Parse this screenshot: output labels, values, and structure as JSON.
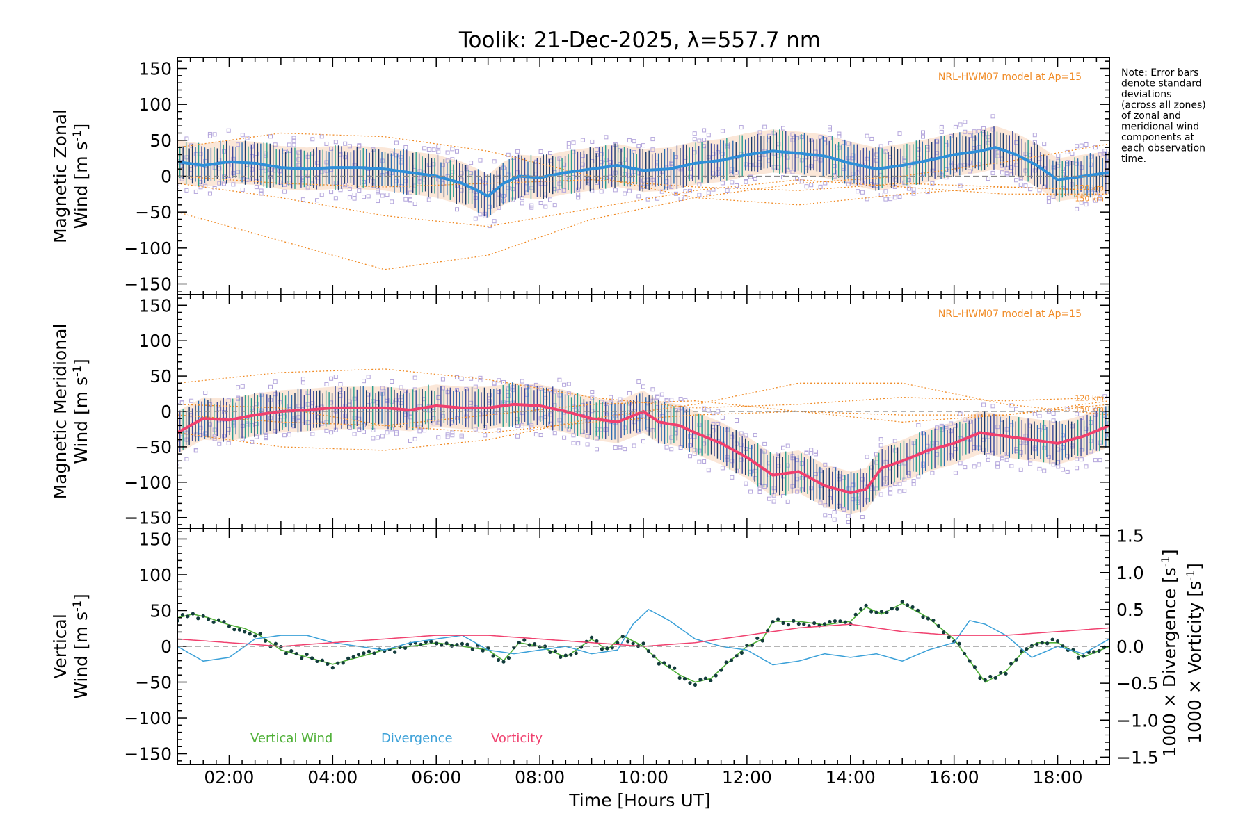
{
  "chart_data": {
    "type": "line",
    "title": "Toolik: 21-Dec-2025, λ=557.7 nm",
    "xlabel": "Time [Hours UT]",
    "xlim": [
      1.0,
      19.0
    ],
    "xticks": [
      {
        "v": 2,
        "label": "02:00"
      },
      {
        "v": 4,
        "label": "04:00"
      },
      {
        "v": 6,
        "label": "06:00"
      },
      {
        "v": 8,
        "label": "08:00"
      },
      {
        "v": 10,
        "label": "10:00"
      },
      {
        "v": 12,
        "label": "12:00"
      },
      {
        "v": 14,
        "label": "14:00"
      },
      {
        "v": 16,
        "label": "16:00"
      },
      {
        "v": 18,
        "label": "18:00"
      }
    ],
    "yticks": [
      "150",
      "100",
      "50",
      "0",
      "−50",
      "−100",
      "−150"
    ],
    "ylim": [
      -165,
      165
    ],
    "note": [
      "Note: Error bars",
      "denote standard",
      "deviations",
      "(across all zones)",
      "of zonal and",
      "meridional wind",
      "components at",
      "each observation",
      "time."
    ],
    "panels": [
      {
        "name": "zonal",
        "ylabel_line1": "Magnetic Zonal",
        "ylabel_line2": "Wind [m s",
        "ylabel_sup": "-1",
        "ylabel_close": "]",
        "model_label": "NRL-HWM07 model at Ap=15",
        "km_labels": [
          "120 km",
          "150 km"
        ],
        "mean_color": "#2f8fd8",
        "series": {
          "name": "Magnetic Zonal Wind mean",
          "x": [
            1.0,
            1.5,
            2.0,
            2.5,
            3.0,
            3.5,
            4.0,
            4.5,
            5.0,
            5.5,
            6.0,
            6.5,
            6.8,
            7.0,
            7.3,
            7.6,
            8.0,
            8.5,
            9.0,
            9.5,
            10.0,
            10.5,
            11.0,
            11.5,
            12.0,
            12.5,
            13.0,
            13.5,
            14.0,
            14.5,
            15.0,
            15.5,
            16.0,
            16.5,
            16.8,
            17.2,
            17.6,
            18.0,
            18.5,
            19.0
          ],
          "y": [
            20,
            15,
            20,
            18,
            12,
            10,
            12,
            12,
            10,
            5,
            0,
            -10,
            -20,
            -28,
            -10,
            0,
            -2,
            5,
            10,
            15,
            8,
            10,
            18,
            22,
            30,
            35,
            32,
            28,
            18,
            10,
            15,
            22,
            30,
            35,
            40,
            30,
            15,
            -5,
            0,
            5
          ]
        },
        "std": 30,
        "model_curves": [
          {
            "x": [
              1,
              3,
              5,
              7,
              9,
              11,
              13,
              15,
              17,
              19
            ],
            "y": [
              -50,
              -90,
              -130,
              -110,
              -60,
              -30,
              -10,
              0,
              20,
              45
            ]
          },
          {
            "x": [
              1,
              3,
              5,
              7,
              9,
              11,
              13,
              15,
              17,
              19
            ],
            "y": [
              -10,
              -30,
              -55,
              -70,
              -45,
              -20,
              -5,
              -15,
              -25,
              -25
            ]
          },
          {
            "x": [
              1,
              3,
              5,
              7,
              9,
              11,
              13,
              15,
              17,
              19
            ],
            "y": [
              40,
              60,
              55,
              35,
              0,
              -30,
              -40,
              -25,
              -15,
              -20
            ]
          },
          {
            "x": [
              1,
              3,
              5,
              7,
              9,
              11,
              13,
              15,
              17,
              19
            ],
            "y": [
              0,
              -10,
              -15,
              -10,
              -5,
              -15,
              -20,
              -10,
              -15,
              -20
            ]
          }
        ]
      },
      {
        "name": "meridional",
        "ylabel_line1": "Magnetic Meridional",
        "ylabel_line2": "Wind [m s",
        "ylabel_sup": "-1",
        "ylabel_close": "]",
        "model_label": "NRL-HWM07 model at Ap=15",
        "km_labels": [
          "120 km",
          "150 km"
        ],
        "mean_color": "#f0406e",
        "series": {
          "name": "Magnetic Meridional Wind mean",
          "x": [
            1.0,
            1.5,
            2.0,
            2.5,
            3.0,
            3.5,
            4.0,
            4.5,
            5.0,
            5.5,
            6.0,
            6.5,
            7.0,
            7.5,
            8.0,
            8.5,
            9.0,
            9.5,
            10.0,
            10.3,
            10.7,
            11.0,
            11.5,
            12.0,
            12.5,
            13.0,
            13.5,
            14.0,
            14.3,
            14.6,
            15.0,
            15.5,
            16.0,
            16.5,
            17.0,
            17.5,
            18.0,
            18.5,
            19.0
          ],
          "y": [
            -30,
            -10,
            -12,
            -5,
            0,
            2,
            5,
            5,
            5,
            2,
            8,
            5,
            5,
            10,
            8,
            0,
            -10,
            -15,
            0,
            -15,
            -20,
            -30,
            -45,
            -65,
            -90,
            -85,
            -105,
            -115,
            -110,
            -80,
            -70,
            -55,
            -45,
            -30,
            -35,
            -40,
            -45,
            -35,
            -20
          ]
        },
        "std": 30,
        "model_curves": [
          {
            "x": [
              1,
              3,
              5,
              7,
              9,
              11,
              13,
              15,
              17,
              19
            ],
            "y": [
              40,
              55,
              60,
              45,
              20,
              5,
              10,
              20,
              15,
              20
            ]
          },
          {
            "x": [
              1,
              3,
              5,
              7,
              9,
              11,
              13,
              15,
              17,
              19
            ],
            "y": [
              -30,
              -50,
              -55,
              -40,
              -10,
              10,
              40,
              40,
              10,
              -5
            ]
          },
          {
            "x": [
              1,
              3,
              5,
              7,
              9,
              11,
              13,
              15,
              17,
              19
            ],
            "y": [
              10,
              5,
              -20,
              -30,
              -15,
              -5,
              0,
              -5,
              -5,
              10
            ]
          },
          {
            "x": [
              1,
              3,
              5,
              7,
              9,
              11,
              13,
              15,
              17,
              19
            ],
            "y": [
              -5,
              -15,
              -20,
              -5,
              10,
              15,
              0,
              -15,
              -5,
              15
            ]
          }
        ]
      }
    ],
    "vertical_panel": {
      "ylabel_a": "Vertical",
      "ylabel_b": "Wind [m s",
      "ylabel_sup": "-1",
      "ylabel_close": "]",
      "right_ylabel_div": "1000 × Divergence [s",
      "right_ylabel_vort": "1000 × Vorticity [s",
      "right_ylabel_sup": "-1",
      "right_ylabel_close": "]",
      "right_ylim": [
        -1.6,
        1.6
      ],
      "right_ticks": [
        {
          "v": 1.5,
          "label": "1.5"
        },
        {
          "v": 1.0,
          "label": "1.0"
        },
        {
          "v": 0.5,
          "label": "0.5"
        },
        {
          "v": 0.0,
          "label": "0.0"
        },
        {
          "v": -0.5,
          "label": "−0.5"
        },
        {
          "v": -1.0,
          "label": "−1.0"
        },
        {
          "v": -1.5,
          "label": "−1.5"
        }
      ],
      "legend": [
        {
          "label": "Vertical Wind",
          "color": "#4fb037"
        },
        {
          "label": "Divergence",
          "color": "#3aa0d8"
        },
        {
          "label": "Vorticity",
          "color": "#f0406e"
        }
      ],
      "series": [
        {
          "name": "Vertical Wind",
          "color": "#4fb037",
          "x": [
            1.0,
            1.3,
            1.6,
            2.0,
            2.3,
            2.6,
            3.0,
            3.5,
            4.0,
            4.5,
            5.0,
            5.5,
            6.0,
            6.5,
            7.0,
            7.3,
            7.6,
            8.0,
            8.5,
            9.0,
            9.3,
            9.6,
            10.0,
            10.3,
            10.7,
            11.0,
            11.3,
            11.6,
            12.0,
            12.3,
            12.5,
            13.0,
            13.5,
            14.0,
            14.3,
            14.6,
            15.0,
            15.5,
            16.0,
            16.3,
            16.6,
            17.0,
            17.3,
            17.6,
            18.0,
            18.5,
            19.0
          ],
          "y": [
            40,
            45,
            40,
            30,
            25,
            15,
            -5,
            -15,
            -25,
            -15,
            -5,
            0,
            5,
            0,
            -5,
            -20,
            5,
            0,
            -15,
            10,
            -5,
            15,
            0,
            -20,
            -40,
            -50,
            -45,
            -25,
            0,
            10,
            35,
            35,
            30,
            35,
            55,
            45,
            60,
            40,
            10,
            -20,
            -50,
            -35,
            -10,
            5,
            5,
            -15,
            0
          ]
        },
        {
          "name": "Divergence",
          "color": "#3aa0d8",
          "x": [
            1.0,
            1.5,
            2.0,
            2.5,
            3.0,
            3.5,
            4.0,
            4.5,
            5.0,
            5.5,
            6.0,
            6.5,
            7.0,
            7.5,
            8.0,
            8.5,
            9.0,
            9.5,
            9.8,
            10.1,
            10.5,
            11.0,
            11.5,
            12.0,
            12.5,
            13.0,
            13.5,
            14.0,
            14.5,
            15.0,
            15.5,
            16.0,
            16.3,
            16.6,
            17.0,
            17.5,
            18.0,
            18.5,
            19.0
          ],
          "x_comment": "",
          "y": [
            0.0,
            -0.2,
            -0.15,
            0.1,
            0.15,
            0.15,
            0.05,
            0.0,
            -0.05,
            0.05,
            0.1,
            0.15,
            -0.05,
            -0.1,
            -0.05,
            0.0,
            -0.1,
            -0.05,
            0.3,
            0.5,
            0.35,
            0.1,
            0.0,
            -0.05,
            -0.25,
            -0.2,
            -0.1,
            -0.15,
            -0.1,
            -0.2,
            -0.05,
            0.05,
            0.35,
            0.3,
            0.15,
            -0.15,
            0.0,
            -0.1,
            0.1
          ]
        },
        {
          "name": "Vorticity",
          "color": "#f0406e",
          "x": [
            1.0,
            2.0,
            3.0,
            4.0,
            5.0,
            6.0,
            7.0,
            8.0,
            9.0,
            10.0,
            11.0,
            12.0,
            13.0,
            14.0,
            15.0,
            16.0,
            17.0,
            18.0,
            19.0
          ],
          "y": [
            0.1,
            0.05,
            0.0,
            0.05,
            0.1,
            0.15,
            0.15,
            0.1,
            0.05,
            0.0,
            0.05,
            0.15,
            0.25,
            0.3,
            0.2,
            0.15,
            0.15,
            0.2,
            0.25
          ]
        }
      ]
    }
  }
}
